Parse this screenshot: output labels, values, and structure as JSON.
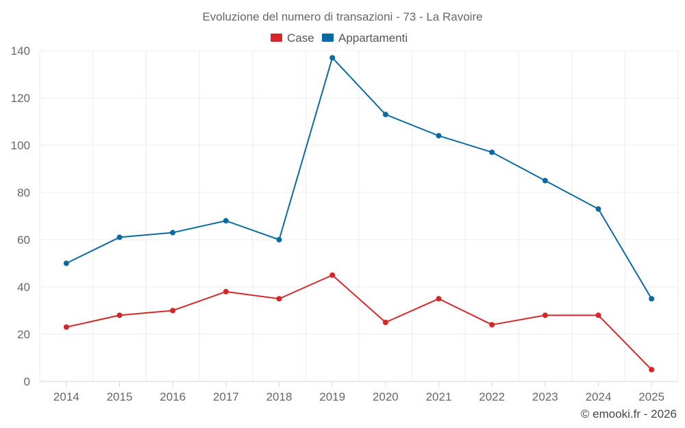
{
  "chart_data": {
    "type": "line",
    "title": "Evoluzione del numero di transazioni - 73 - La Ravoire",
    "categories": [
      "2014",
      "2015",
      "2016",
      "2017",
      "2018",
      "2019",
      "2020",
      "2021",
      "2022",
      "2023",
      "2024",
      "2025"
    ],
    "series": [
      {
        "name": "Case",
        "color": "#d62728",
        "values": [
          23,
          28,
          30,
          38,
          35,
          45,
          25,
          35,
          24,
          28,
          28,
          5
        ]
      },
      {
        "name": "Appartamenti",
        "color": "#0a6aa1",
        "values": [
          50,
          61,
          63,
          68,
          60,
          137,
          113,
          104,
          97,
          85,
          73,
          35
        ]
      }
    ],
    "ylim": [
      0,
      140
    ],
    "yticks": [
      "0",
      "20",
      "40",
      "60",
      "80",
      "100",
      "120",
      "140"
    ],
    "xlabel": "",
    "ylabel": "",
    "grid": true,
    "legend_position": "top-center"
  },
  "credit": "© emooki.fr - 2026"
}
